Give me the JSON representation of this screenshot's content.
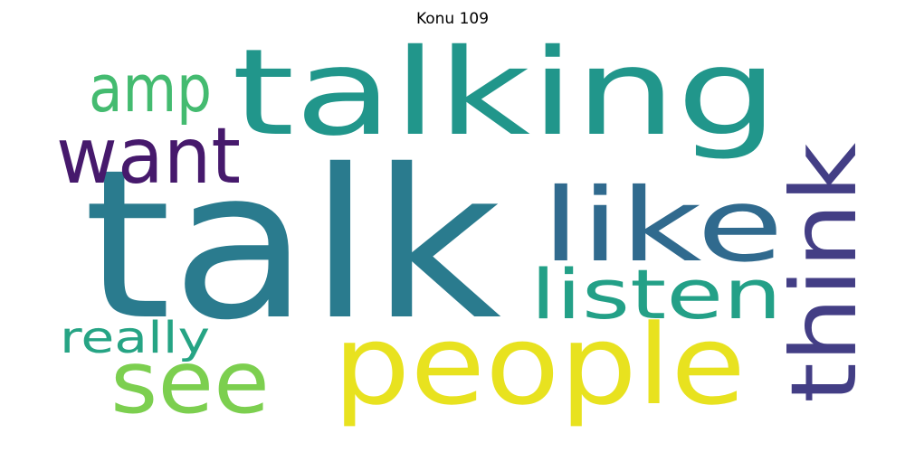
{
  "title": "Konu 109",
  "words": [
    {
      "text": "talk",
      "color": "#2a7b8e"
    },
    {
      "text": "talking",
      "color": "#21968b"
    },
    {
      "text": "people",
      "color": "#e8e21f"
    },
    {
      "text": "like",
      "color": "#306a8e"
    },
    {
      "text": "think",
      "color": "#433e85"
    },
    {
      "text": "want",
      "color": "#46196c"
    },
    {
      "text": "listen",
      "color": "#23a087"
    },
    {
      "text": "see",
      "color": "#7ccf4f"
    },
    {
      "text": "amp",
      "color": "#44bb70"
    },
    {
      "text": "really",
      "color": "#26a484"
    }
  ]
}
